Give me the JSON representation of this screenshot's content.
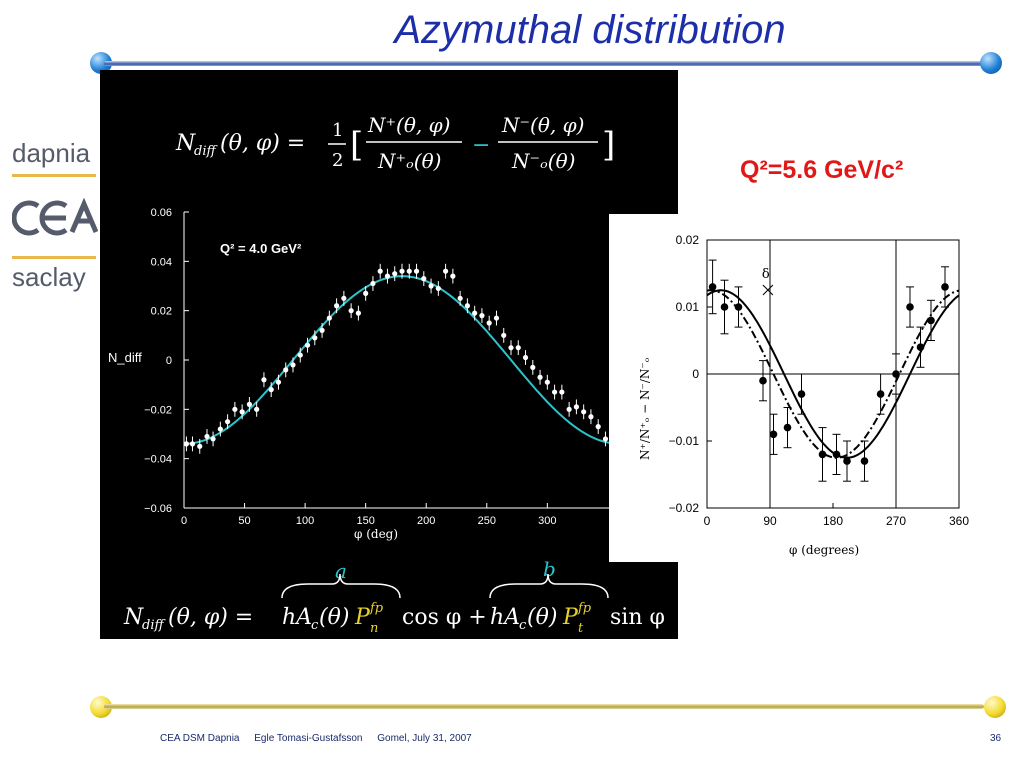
{
  "slide": {
    "title": "Azymuthal distribution",
    "logos": {
      "dapnia": "dapnia",
      "cea": "cea",
      "saclay": "saclay"
    },
    "q2_right_label": "Q²=5.6 GeV/c²",
    "footer": {
      "org": "CEA DSM Dapnia",
      "author": "Egle Tomasi-Gustafsson",
      "venue_date": "Gomel, July 31, 2007",
      "page": "36"
    },
    "formula_top": "N_diff(θ,φ) = 1/2 [ N⁺(θ,φ)/N⁺ₒ(θ) − N⁻(θ,φ)/N⁻ₒ(θ) ]",
    "formula_bottom": "N_diff(θ,φ) = hA_c(θ)P_n^fp cosφ + hA_c(θ)P_t^fp sinφ",
    "brace_a": "a",
    "brace_b": "b",
    "colors": {
      "title": "#1c2ea8",
      "q2": "#e01818",
      "fit_curve": "#2bc4cc",
      "highlight": "#e6d22a"
    }
  },
  "chart_data": [
    {
      "type": "scatter",
      "annotation": "Q² = 4.0 GeV²",
      "xlabel": "φ (deg)",
      "ylabel": "N_diff",
      "xlim": [
        0,
        360
      ],
      "ylim": [
        -0.06,
        0.06
      ],
      "x_ticks": [
        0,
        50,
        100,
        150,
        200,
        250,
        300
      ],
      "y_ticks": [
        -0.06,
        -0.04,
        -0.02,
        0,
        0.02,
        0.04,
        0.06
      ],
      "y_tick_labels": [
        "−0.06",
        "−0.04",
        "−0.02",
        "0",
        "0.02",
        "0.04",
        "0.06"
      ],
      "series": [
        {
          "x": [
            2,
            7,
            13,
            19,
            24,
            30,
            36,
            42,
            48,
            54,
            60,
            66,
            72,
            78,
            84,
            90,
            96,
            102,
            108,
            114,
            120,
            126,
            132,
            138,
            144,
            150,
            156,
            162,
            168,
            174,
            180,
            186,
            192,
            198,
            204,
            210,
            216,
            222,
            228,
            234,
            240,
            246,
            252,
            258,
            264,
            270,
            276,
            282,
            288,
            294,
            300,
            306,
            312,
            318,
            324,
            330,
            336,
            342,
            348
          ],
          "y": [
            -0.034,
            -0.034,
            -0.035,
            -0.031,
            -0.032,
            -0.028,
            -0.025,
            -0.02,
            -0.021,
            -0.018,
            -0.02,
            -0.008,
            -0.012,
            -0.009,
            -0.004,
            -0.002,
            0.002,
            0.006,
            0.009,
            0.012,
            0.017,
            0.022,
            0.025,
            0.02,
            0.019,
            0.027,
            0.031,
            0.036,
            0.034,
            0.035,
            0.036,
            0.036,
            0.036,
            0.033,
            0.03,
            0.029,
            0.036,
            0.034,
            0.025,
            0.022,
            0.019,
            0.018,
            0.015,
            0.017,
            0.01,
            0.005,
            0.005,
            0.001,
            -0.003,
            -0.007,
            -0.009,
            -0.013,
            -0.013,
            -0.02,
            -0.019,
            -0.021,
            -0.023,
            -0.027,
            -0.032
          ],
          "yerr": 0.003
        }
      ],
      "fit_curve": {
        "description": "cos fit",
        "amplitude": 0.034,
        "phase_deg": 180
      }
    },
    {
      "type": "scatter",
      "xlabel": "φ (degrees)",
      "ylabel": "N⁺/N⁺ₒ − N⁻/N⁻ₒ",
      "xlim": [
        0,
        360
      ],
      "ylim": [
        -0.02,
        0.02
      ],
      "x_ticks": [
        0,
        90,
        180,
        270,
        360
      ],
      "y_ticks": [
        -0.02,
        -0.01,
        0,
        0.01,
        0.02
      ],
      "y_tick_labels": [
        "−0.02",
        "−0.01",
        "0",
        "0.01",
        "0.02"
      ],
      "marker_label": "δ",
      "marker_x": 87,
      "series": [
        {
          "x": [
            8,
            25,
            45,
            80,
            95,
            115,
            135,
            165,
            185,
            200,
            225,
            248,
            270,
            290,
            305,
            320,
            340
          ],
          "y": [
            0.013,
            0.01,
            0.01,
            -0.001,
            -0.009,
            -0.008,
            -0.003,
            -0.012,
            -0.012,
            -0.013,
            -0.013,
            -0.003,
            0.0,
            0.01,
            0.004,
            0.008,
            0.013
          ],
          "yerr": [
            0.004,
            0.004,
            0.003,
            0.003,
            0.003,
            0.003,
            0.003,
            0.004,
            0.003,
            0.003,
            0.003,
            0.003,
            0.003,
            0.003,
            0.003,
            0.003,
            0.003
          ]
        }
      ],
      "curves": [
        {
          "name": "",
          "style": "solid",
          "amplitude": 0.0125,
          "phase_deg": 20
        },
        {
          "name": "",
          "style": "dash-dot",
          "amplitude": 0.0125,
          "phase_deg": 5
        }
      ]
    }
  ]
}
